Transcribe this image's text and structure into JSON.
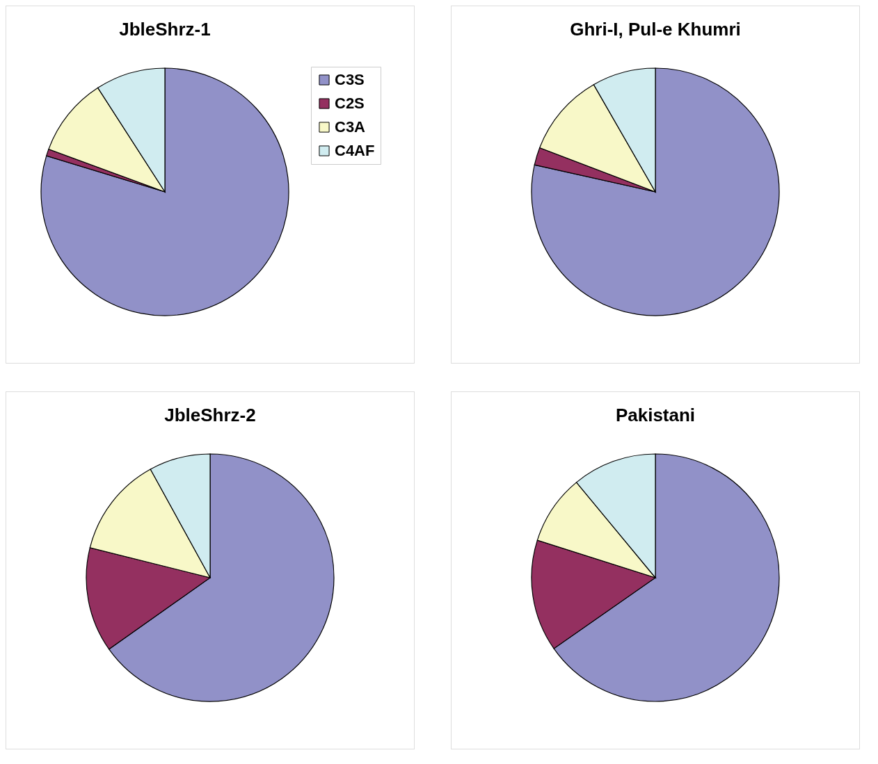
{
  "chart_data": [
    {
      "type": "pie",
      "title": "JbleShrz-1",
      "categories": [
        "C3S",
        "C2S",
        "C3A",
        "C4AF"
      ],
      "values": [
        79.7,
        0.9,
        10.3,
        9.1
      ],
      "colors": [
        "#9191c8",
        "#943060",
        "#f8f8c8",
        "#d0ecf0"
      ],
      "legend": "right"
    },
    {
      "type": "pie",
      "title": "Ghri-I, Pul-e Khumri",
      "categories": [
        null,
        null,
        null,
        null
      ],
      "values": [
        78.5,
        2.3,
        10.9,
        8.3
      ],
      "colors": [
        "#9191c8",
        "#943060",
        "#f8f8c8",
        "#d0ecf0"
      ]
    },
    {
      "type": "pie",
      "title": "JbleShrz-2",
      "categories": [
        null,
        null,
        null,
        null
      ],
      "values": [
        65.2,
        13.7,
        13.1,
        8.0
      ],
      "colors": [
        "#9191c8",
        "#943060",
        "#f8f8c8",
        "#d0ecf0"
      ]
    },
    {
      "type": "pie",
      "title": "Pakistani",
      "categories": [
        null,
        null,
        null,
        null
      ],
      "values": [
        65.3,
        14.6,
        9.1,
        11.0
      ],
      "colors": [
        "#9191c8",
        "#943060",
        "#f8f8c8",
        "#d0ecf0"
      ]
    }
  ]
}
